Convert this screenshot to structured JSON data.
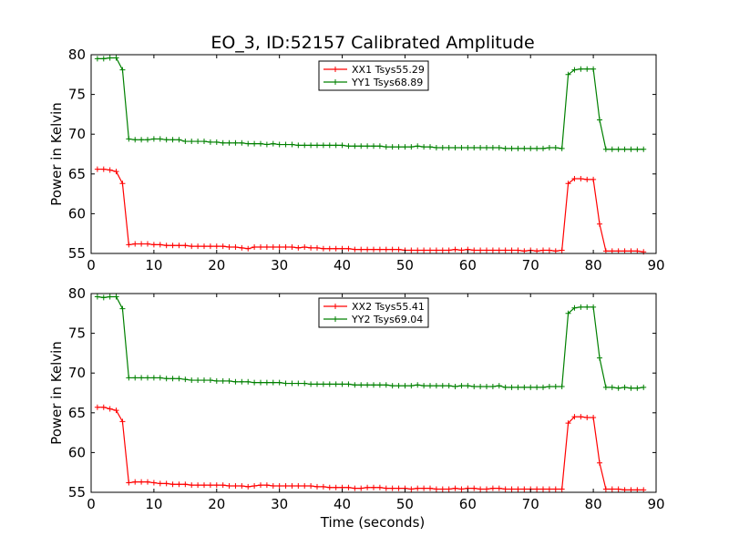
{
  "title": "EO_3, ID:52157 Calibrated Amplitude",
  "xlabel": "Time (seconds)",
  "colors": {
    "xx": "#ff0000",
    "yy": "#008000"
  },
  "chart_data": [
    {
      "type": "line",
      "ylabel": "Power in Kelvin",
      "xlim": [
        0,
        90
      ],
      "ylim": [
        55,
        80
      ],
      "xticks": [
        0,
        10,
        20,
        30,
        40,
        50,
        60,
        70,
        80,
        90
      ],
      "yticks": [
        55,
        60,
        65,
        70,
        75,
        80
      ],
      "legend_position": "top-center",
      "x": [
        1,
        2,
        3,
        4,
        5,
        6,
        7,
        8,
        9,
        10,
        11,
        12,
        13,
        14,
        15,
        16,
        17,
        18,
        19,
        20,
        21,
        22,
        23,
        24,
        25,
        26,
        27,
        28,
        29,
        30,
        31,
        32,
        33,
        34,
        35,
        36,
        37,
        38,
        39,
        40,
        41,
        42,
        43,
        44,
        45,
        46,
        47,
        48,
        49,
        50,
        51,
        52,
        53,
        54,
        55,
        56,
        57,
        58,
        59,
        60,
        61,
        62,
        63,
        64,
        65,
        66,
        67,
        68,
        69,
        70,
        71,
        72,
        73,
        74,
        75,
        76,
        77,
        78,
        79,
        80,
        81,
        82,
        83,
        84,
        85,
        86,
        87,
        88
      ],
      "series": [
        {
          "name": "XX1 Tsys55.29",
          "color": "#ff0000",
          "values": [
            65.6,
            65.6,
            65.5,
            65.3,
            63.8,
            56.1,
            56.2,
            56.2,
            56.2,
            56.1,
            56.1,
            56.0,
            56.0,
            56.0,
            56.0,
            55.9,
            55.9,
            55.9,
            55.9,
            55.9,
            55.9,
            55.8,
            55.8,
            55.7,
            55.6,
            55.8,
            55.8,
            55.8,
            55.8,
            55.8,
            55.8,
            55.8,
            55.7,
            55.8,
            55.7,
            55.7,
            55.6,
            55.6,
            55.6,
            55.6,
            55.6,
            55.5,
            55.5,
            55.5,
            55.5,
            55.5,
            55.5,
            55.5,
            55.5,
            55.4,
            55.4,
            55.4,
            55.4,
            55.4,
            55.4,
            55.4,
            55.4,
            55.5,
            55.4,
            55.5,
            55.4,
            55.4,
            55.4,
            55.4,
            55.4,
            55.4,
            55.4,
            55.4,
            55.3,
            55.4,
            55.3,
            55.4,
            55.4,
            55.3,
            55.4,
            63.8,
            64.4,
            64.4,
            64.3,
            64.3,
            58.7,
            55.3,
            55.3,
            55.3,
            55.3,
            55.3,
            55.3,
            55.2
          ]
        },
        {
          "name": "YY1 Tsys68.89",
          "color": "#008000",
          "values": [
            79.5,
            79.5,
            79.6,
            79.6,
            78.1,
            69.4,
            69.3,
            69.3,
            69.3,
            69.4,
            69.4,
            69.3,
            69.3,
            69.3,
            69.1,
            69.1,
            69.1,
            69.1,
            69.0,
            69.0,
            68.9,
            68.9,
            68.9,
            68.9,
            68.8,
            68.8,
            68.8,
            68.7,
            68.8,
            68.7,
            68.7,
            68.7,
            68.6,
            68.6,
            68.6,
            68.6,
            68.6,
            68.6,
            68.6,
            68.6,
            68.5,
            68.5,
            68.5,
            68.5,
            68.5,
            68.5,
            68.4,
            68.4,
            68.4,
            68.4,
            68.4,
            68.5,
            68.4,
            68.4,
            68.3,
            68.3,
            68.3,
            68.3,
            68.3,
            68.3,
            68.3,
            68.3,
            68.3,
            68.3,
            68.3,
            68.2,
            68.2,
            68.2,
            68.2,
            68.2,
            68.2,
            68.2,
            68.3,
            68.3,
            68.2,
            77.5,
            78.1,
            78.2,
            78.2,
            78.2,
            71.8,
            68.1,
            68.1,
            68.1,
            68.1,
            68.1,
            68.1,
            68.1
          ]
        }
      ]
    },
    {
      "type": "line",
      "ylabel": "Power in Kelvin",
      "xlim": [
        0,
        90
      ],
      "ylim": [
        55,
        80
      ],
      "xticks": [
        0,
        10,
        20,
        30,
        40,
        50,
        60,
        70,
        80,
        90
      ],
      "yticks": [
        55,
        60,
        65,
        70,
        75,
        80
      ],
      "legend_position": "top-center",
      "x": [
        1,
        2,
        3,
        4,
        5,
        6,
        7,
        8,
        9,
        10,
        11,
        12,
        13,
        14,
        15,
        16,
        17,
        18,
        19,
        20,
        21,
        22,
        23,
        24,
        25,
        26,
        27,
        28,
        29,
        30,
        31,
        32,
        33,
        34,
        35,
        36,
        37,
        38,
        39,
        40,
        41,
        42,
        43,
        44,
        45,
        46,
        47,
        48,
        49,
        50,
        51,
        52,
        53,
        54,
        55,
        56,
        57,
        58,
        59,
        60,
        61,
        62,
        63,
        64,
        65,
        66,
        67,
        68,
        69,
        70,
        71,
        72,
        73,
        74,
        75,
        76,
        77,
        78,
        79,
        80,
        81,
        82,
        83,
        84,
        85,
        86,
        87,
        88
      ],
      "series": [
        {
          "name": "XX2 Tsys55.41",
          "color": "#ff0000",
          "values": [
            65.7,
            65.7,
            65.5,
            65.3,
            63.9,
            56.2,
            56.3,
            56.3,
            56.3,
            56.2,
            56.1,
            56.1,
            56.0,
            56.0,
            56.0,
            55.9,
            55.9,
            55.9,
            55.9,
            55.9,
            55.9,
            55.8,
            55.8,
            55.8,
            55.7,
            55.8,
            55.9,
            55.9,
            55.8,
            55.8,
            55.8,
            55.8,
            55.8,
            55.8,
            55.8,
            55.7,
            55.7,
            55.6,
            55.6,
            55.6,
            55.6,
            55.5,
            55.5,
            55.6,
            55.6,
            55.6,
            55.5,
            55.5,
            55.5,
            55.5,
            55.4,
            55.5,
            55.5,
            55.5,
            55.4,
            55.4,
            55.4,
            55.5,
            55.4,
            55.5,
            55.5,
            55.4,
            55.4,
            55.5,
            55.5,
            55.4,
            55.4,
            55.4,
            55.4,
            55.4,
            55.4,
            55.4,
            55.4,
            55.4,
            55.4,
            63.7,
            64.5,
            64.5,
            64.4,
            64.4,
            58.7,
            55.4,
            55.4,
            55.4,
            55.3,
            55.3,
            55.3,
            55.3
          ]
        },
        {
          "name": "YY2 Tsys69.04",
          "color": "#008000",
          "values": [
            79.6,
            79.5,
            79.6,
            79.6,
            78.1,
            69.4,
            69.4,
            69.4,
            69.4,
            69.4,
            69.4,
            69.3,
            69.3,
            69.3,
            69.2,
            69.1,
            69.1,
            69.1,
            69.1,
            69.0,
            69.0,
            69.0,
            68.9,
            68.9,
            68.9,
            68.8,
            68.8,
            68.8,
            68.8,
            68.8,
            68.7,
            68.7,
            68.7,
            68.7,
            68.6,
            68.6,
            68.6,
            68.6,
            68.6,
            68.6,
            68.6,
            68.5,
            68.5,
            68.5,
            68.5,
            68.5,
            68.5,
            68.4,
            68.4,
            68.4,
            68.4,
            68.5,
            68.4,
            68.4,
            68.4,
            68.4,
            68.4,
            68.3,
            68.4,
            68.4,
            68.3,
            68.3,
            68.3,
            68.3,
            68.4,
            68.2,
            68.2,
            68.2,
            68.2,
            68.2,
            68.2,
            68.2,
            68.3,
            68.3,
            68.3,
            77.5,
            78.2,
            78.3,
            78.3,
            78.3,
            71.9,
            68.2,
            68.2,
            68.1,
            68.2,
            68.1,
            68.1,
            68.2
          ]
        }
      ]
    }
  ]
}
